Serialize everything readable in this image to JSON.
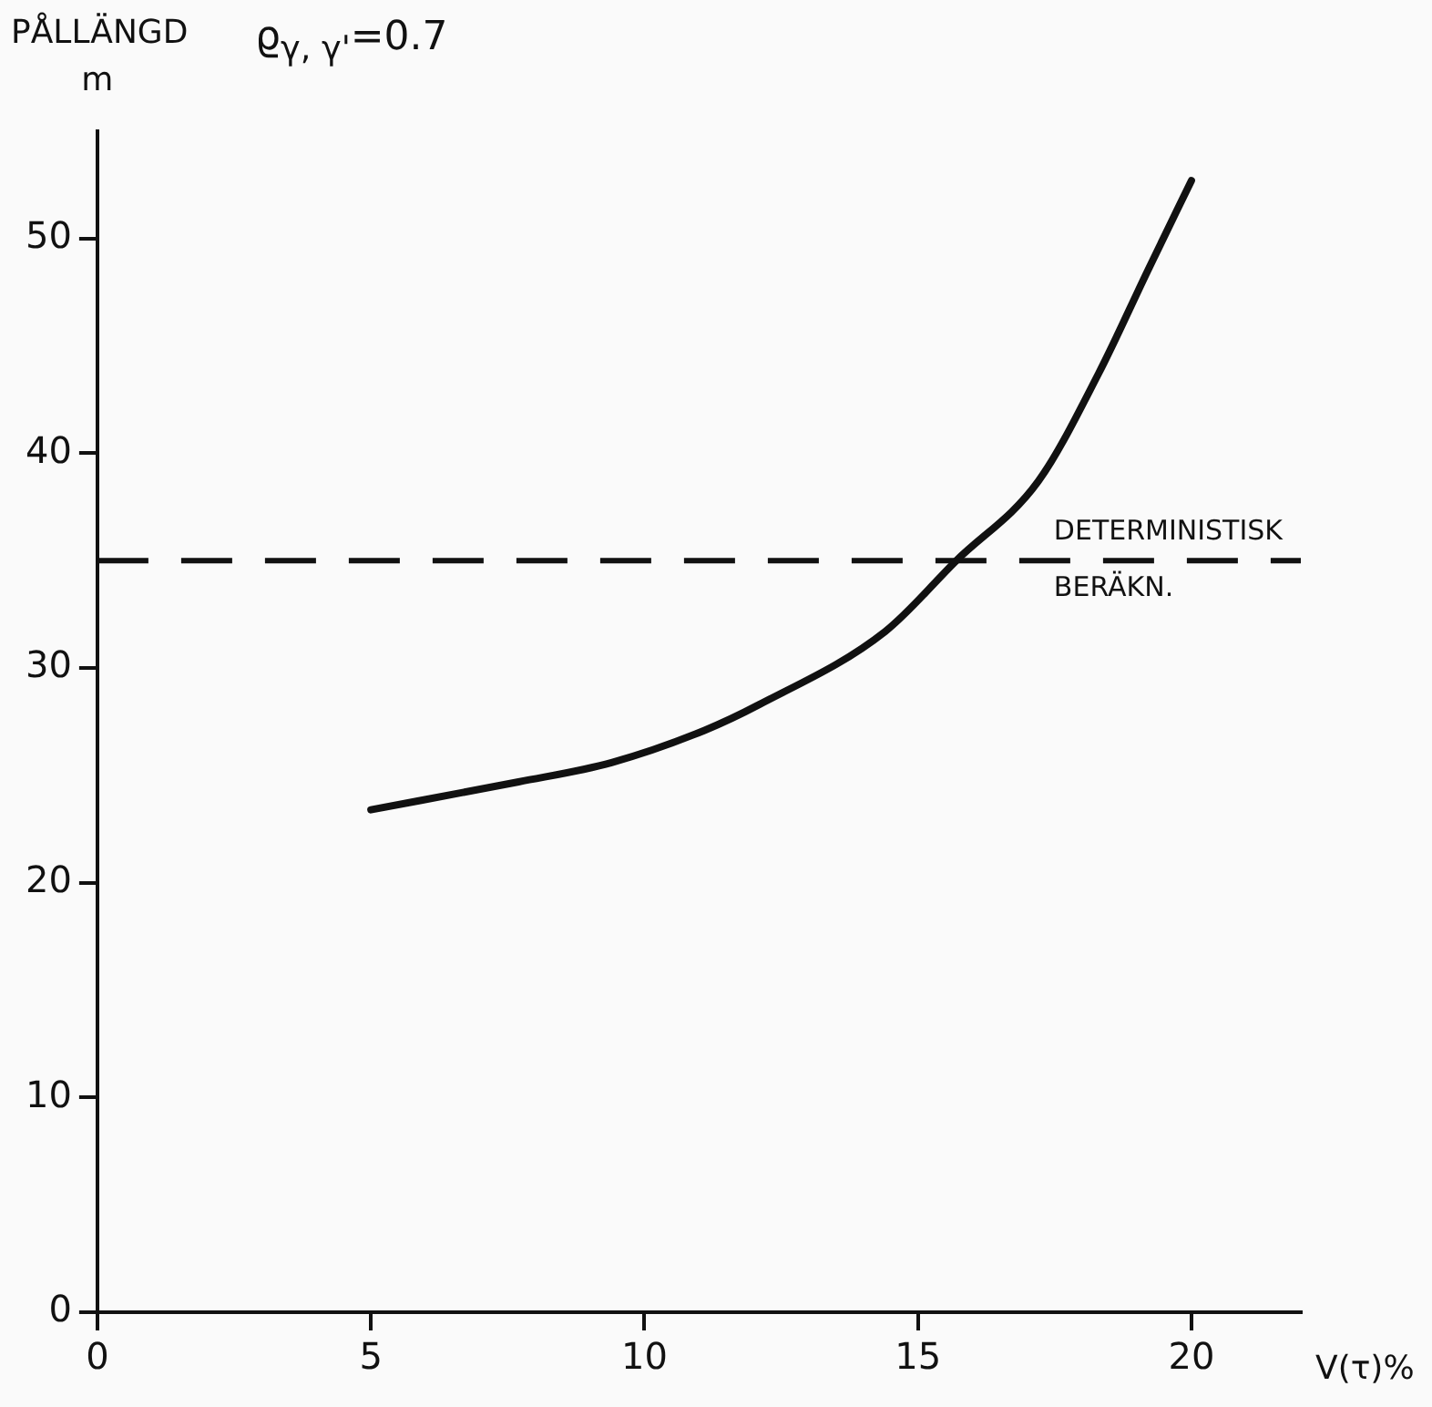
{
  "chart_data": {
    "type": "line",
    "title": "ϱ$_{γ, γ'}$=0.7",
    "ylabel": "PÅLLÄNGD m",
    "xlabel": "V(τ)%",
    "x": [
      5,
      7.7,
      9.4,
      11.1,
      12.1,
      14.4,
      15.7,
      17.2,
      18.3,
      19.2,
      20
    ],
    "series": [
      {
        "color": "#111111",
        "values": [
          23.4,
          24.7,
          25.6,
          27.1,
          28.3,
          31.7,
          35,
          38.7,
          43.7,
          48.5,
          52.7
        ]
      }
    ],
    "xlim": [
      0,
      22
    ],
    "xticks": [
      0,
      5,
      10,
      15,
      20
    ],
    "ylim": [
      0,
      55
    ],
    "yticks": [
      0,
      10,
      20,
      30,
      40,
      50
    ],
    "ref_lines": [
      {
        "axis": "y",
        "value": 35,
        "label": "DETERMINISTISK BERÄKN.",
        "color": "#111111",
        "line_style": "dashed"
      }
    ],
    "grid": false,
    "legend": false,
    "marker": "none",
    "line_style": "solid"
  }
}
